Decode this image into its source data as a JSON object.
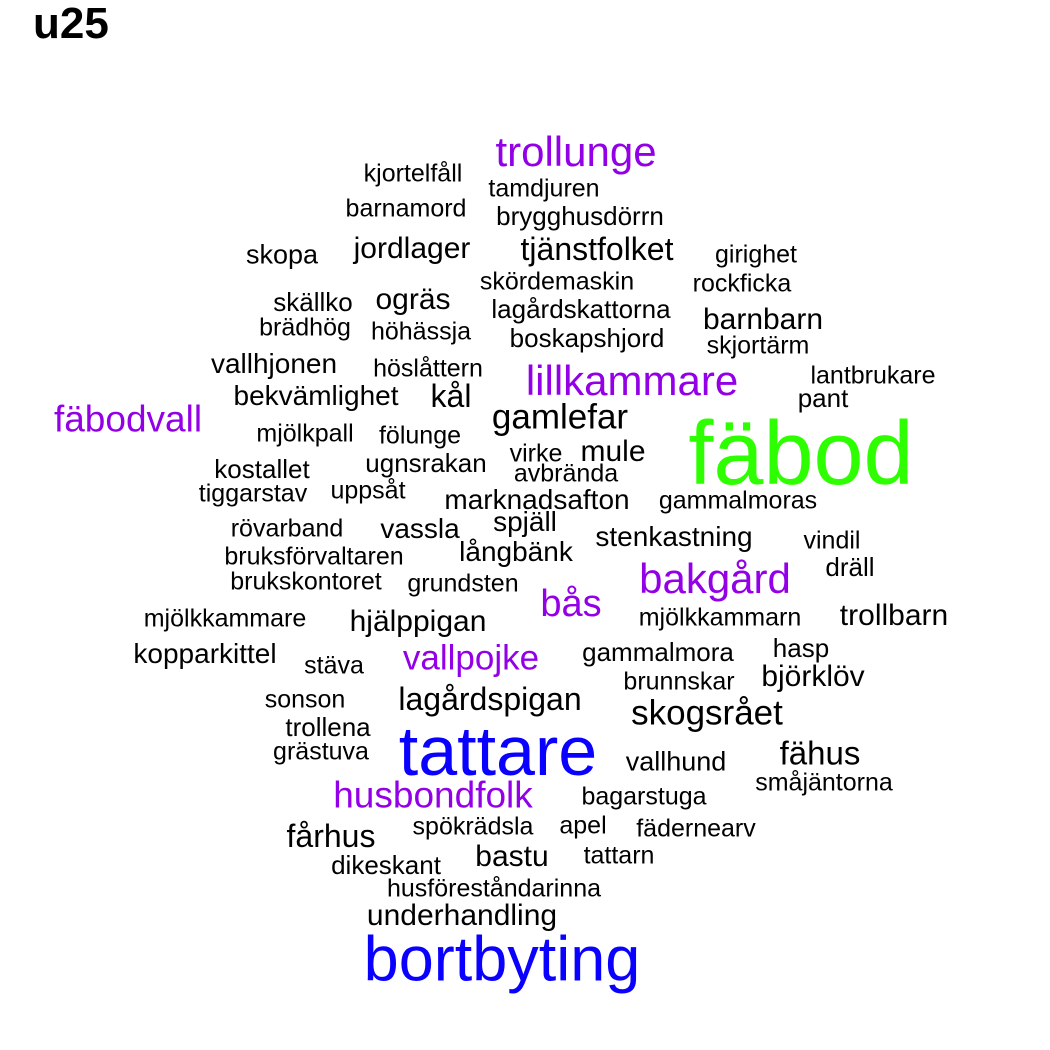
{
  "title": "u25",
  "colors": {
    "large": "#2EFF00",
    "blue": "#0A00FF",
    "purple": "#9300E8",
    "base": "#000000"
  },
  "words": [
    {
      "text": "fäbod",
      "color": "large"
    },
    {
      "text": "tattare",
      "color": "blue"
    },
    {
      "text": "bortbyting",
      "color": "blue"
    },
    {
      "text": "trollunge",
      "color": "purple"
    },
    {
      "text": "lillkammare",
      "color": "purple"
    },
    {
      "text": "fäbodvall",
      "color": "purple"
    },
    {
      "text": "bakgård",
      "color": "purple"
    },
    {
      "text": "bås",
      "color": "purple"
    },
    {
      "text": "vallpojke",
      "color": "purple"
    },
    {
      "text": "husbondfolk",
      "color": "purple"
    },
    {
      "text": "kjortelfåll",
      "color": "base"
    },
    {
      "text": "tamdjuren",
      "color": "base"
    },
    {
      "text": "barnamord",
      "color": "base"
    },
    {
      "text": "brygghusdörrn",
      "color": "base"
    },
    {
      "text": "skopa",
      "color": "base"
    },
    {
      "text": "jordlager",
      "color": "base"
    },
    {
      "text": "tjänstfolket",
      "color": "base"
    },
    {
      "text": "girighet",
      "color": "base"
    },
    {
      "text": "skördemaskin",
      "color": "base"
    },
    {
      "text": "rockficka",
      "color": "base"
    },
    {
      "text": "skällko",
      "color": "base"
    },
    {
      "text": "ogräs",
      "color": "base"
    },
    {
      "text": "lagårdskattorna",
      "color": "base"
    },
    {
      "text": "brädhög",
      "color": "base"
    },
    {
      "text": "höhässja",
      "color": "base"
    },
    {
      "text": "boskapshjord",
      "color": "base"
    },
    {
      "text": "barnbarn",
      "color": "base"
    },
    {
      "text": "skjortärm",
      "color": "base"
    },
    {
      "text": "vallhjonen",
      "color": "base"
    },
    {
      "text": "höslåttern",
      "color": "base"
    },
    {
      "text": "lantbrukare",
      "color": "base"
    },
    {
      "text": "bekvämlighet",
      "color": "base"
    },
    {
      "text": "kål",
      "color": "base"
    },
    {
      "text": "pant",
      "color": "base"
    },
    {
      "text": "gamlefar",
      "color": "base"
    },
    {
      "text": "mjölkpall",
      "color": "base"
    },
    {
      "text": "fölunge",
      "color": "base"
    },
    {
      "text": "virke",
      "color": "base"
    },
    {
      "text": "mule",
      "color": "base"
    },
    {
      "text": "kostallet",
      "color": "base"
    },
    {
      "text": "ugnsrakan",
      "color": "base"
    },
    {
      "text": "avbrända",
      "color": "base"
    },
    {
      "text": "tiggarstav",
      "color": "base"
    },
    {
      "text": "uppsåt",
      "color": "base"
    },
    {
      "text": "marknadsafton",
      "color": "base"
    },
    {
      "text": "gammalmoras",
      "color": "base"
    },
    {
      "text": "rövarband",
      "color": "base"
    },
    {
      "text": "vassla",
      "color": "base"
    },
    {
      "text": "spjäll",
      "color": "base"
    },
    {
      "text": "stenkastning",
      "color": "base"
    },
    {
      "text": "vindil",
      "color": "base"
    },
    {
      "text": "bruksförvaltaren",
      "color": "base"
    },
    {
      "text": "långbänk",
      "color": "base"
    },
    {
      "text": "dräll",
      "color": "base"
    },
    {
      "text": "brukskontoret",
      "color": "base"
    },
    {
      "text": "grundsten",
      "color": "base"
    },
    {
      "text": "mjölkkammare",
      "color": "base"
    },
    {
      "text": "hjälppigan",
      "color": "base"
    },
    {
      "text": "mjölkkammarn",
      "color": "base"
    },
    {
      "text": "trollbarn",
      "color": "base"
    },
    {
      "text": "kopparkittel",
      "color": "base"
    },
    {
      "text": "stäva",
      "color": "base"
    },
    {
      "text": "gammalmora",
      "color": "base"
    },
    {
      "text": "hasp",
      "color": "base"
    },
    {
      "text": "björklöv",
      "color": "base"
    },
    {
      "text": "sonson",
      "color": "base"
    },
    {
      "text": "lagårdspigan",
      "color": "base"
    },
    {
      "text": "brunnskar",
      "color": "base"
    },
    {
      "text": "skogsrået",
      "color": "base"
    },
    {
      "text": "trollena",
      "color": "base"
    },
    {
      "text": "grästuva",
      "color": "base"
    },
    {
      "text": "vallhund",
      "color": "base"
    },
    {
      "text": "fähus",
      "color": "base"
    },
    {
      "text": "småjäntorna",
      "color": "base"
    },
    {
      "text": "bagarstuga",
      "color": "base"
    },
    {
      "text": "fårhus",
      "color": "base"
    },
    {
      "text": "spökrädsla",
      "color": "base"
    },
    {
      "text": "apel",
      "color": "base"
    },
    {
      "text": "fädernearv",
      "color": "base"
    },
    {
      "text": "dikeskant",
      "color": "base"
    },
    {
      "text": "bastu",
      "color": "base"
    },
    {
      "text": "tattarn",
      "color": "base"
    },
    {
      "text": "husföreståndarinna",
      "color": "base"
    },
    {
      "text": "underhandling",
      "color": "base"
    }
  ]
}
